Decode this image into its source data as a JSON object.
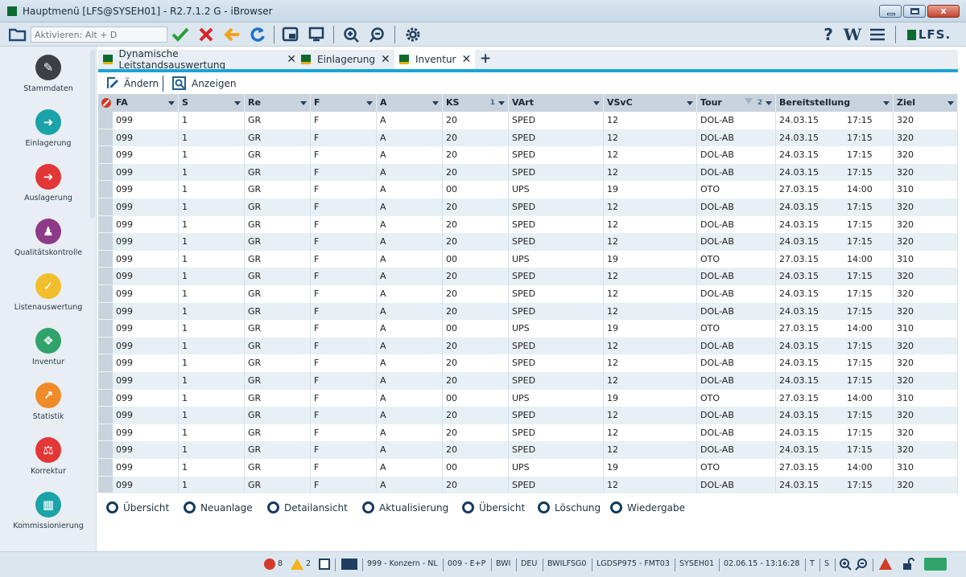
{
  "window": {
    "title": "Hauptmenü [LFS@SYSEH01] - R2.7.1.2 G - iBrowser",
    "controls": {
      "close": "x"
    }
  },
  "toolbar": {
    "activate_placeholder": "Aktivieren: Alt + D",
    "right": {
      "help": "?",
      "wiki": "W",
      "brand": "LFS."
    },
    "icons": [
      "open-folder-icon",
      "check-icon",
      "cancel-x-icon",
      "back-arrow-icon",
      "refresh-icon",
      "window-icon",
      "print-icon",
      "zoom-in-icon",
      "zoom-out-icon",
      "settings-gear-icon",
      "help-icon",
      "wiki-icon",
      "menu-icon"
    ]
  },
  "sidebar": {
    "items": [
      {
        "label": "Stammdaten",
        "icon": "person-tools-icon",
        "color": "#3c3f44"
      },
      {
        "label": "Einlagerung",
        "icon": "arrow-in-icon",
        "color": "#1aa3a8"
      },
      {
        "label": "Auslagerung",
        "icon": "arrow-out-icon",
        "color": "#e33636"
      },
      {
        "label": "Qualitätskontrolle",
        "icon": "stamp-icon",
        "color": "#8e3a8a"
      },
      {
        "label": "Listenauswertung",
        "icon": "folder-check-icon",
        "color": "#f3be2e"
      },
      {
        "label": "Inventur",
        "icon": "cube-icon",
        "color": "#2fa36b"
      },
      {
        "label": "Statistik",
        "icon": "chart-icon",
        "color": "#f08b2a"
      },
      {
        "label": "Korrektur",
        "icon": "scale-icon",
        "color": "#e33636"
      },
      {
        "label": "Kommissionierung",
        "icon": "grid-icon",
        "color": "#1aa3a8"
      }
    ]
  },
  "tabs": [
    {
      "label": "Dynamische Leitstandsauswertung",
      "active": false
    },
    {
      "label": "Einlagerung",
      "active": false
    },
    {
      "label": "Inventur",
      "active": true
    }
  ],
  "actions": [
    {
      "label": "Ändern",
      "icon": "edit-icon"
    },
    {
      "label": "Anzeigen",
      "icon": "view-search-icon"
    }
  ],
  "grid": {
    "columns": [
      {
        "key": "fa",
        "label": "FA"
      },
      {
        "key": "s",
        "label": "S"
      },
      {
        "key": "re",
        "label": "Re"
      },
      {
        "key": "f",
        "label": "F"
      },
      {
        "key": "a",
        "label": "A"
      },
      {
        "key": "ks",
        "label": "KS",
        "sort": "1"
      },
      {
        "key": "vart",
        "label": "VArt"
      },
      {
        "key": "vsvc",
        "label": "VSvC"
      },
      {
        "key": "tour",
        "label": "Tour",
        "sort": "2"
      },
      {
        "key": "bereit",
        "label": "Bereitstellung"
      },
      {
        "key": "ziel",
        "label": "Ziel"
      }
    ],
    "rows": [
      [
        "099",
        "1",
        "GR",
        "F",
        "A",
        "20",
        "SPED",
        "12",
        "DOL-AB",
        "24.03.15",
        "17:15",
        "320"
      ],
      [
        "099",
        "1",
        "GR",
        "F",
        "A",
        "20",
        "SPED",
        "12",
        "DOL-AB",
        "24.03.15",
        "17:15",
        "320"
      ],
      [
        "099",
        "1",
        "GR",
        "F",
        "A",
        "20",
        "SPED",
        "12",
        "DOL-AB",
        "24.03.15",
        "17:15",
        "320"
      ],
      [
        "099",
        "1",
        "GR",
        "F",
        "A",
        "20",
        "SPED",
        "12",
        "DOL-AB",
        "24.03.15",
        "17:15",
        "320"
      ],
      [
        "099",
        "1",
        "GR",
        "F",
        "A",
        "00",
        "UPS",
        "19",
        "OTO",
        "27.03.15",
        "14:00",
        "310"
      ],
      [
        "099",
        "1",
        "GR",
        "F",
        "A",
        "20",
        "SPED",
        "12",
        "DOL-AB",
        "24.03.15",
        "17:15",
        "320"
      ],
      [
        "099",
        "1",
        "GR",
        "F",
        "A",
        "20",
        "SPED",
        "12",
        "DOL-AB",
        "24.03.15",
        "17:15",
        "320"
      ],
      [
        "099",
        "1",
        "GR",
        "F",
        "A",
        "20",
        "SPED",
        "12",
        "DOL-AB",
        "24.03.15",
        "17:15",
        "320"
      ],
      [
        "099",
        "1",
        "GR",
        "F",
        "A",
        "00",
        "UPS",
        "19",
        "OTO",
        "27.03.15",
        "14:00",
        "310"
      ],
      [
        "099",
        "1",
        "GR",
        "F",
        "A",
        "20",
        "SPED",
        "12",
        "DOL-AB",
        "24.03.15",
        "17:15",
        "320"
      ],
      [
        "099",
        "1",
        "GR",
        "F",
        "A",
        "20",
        "SPED",
        "12",
        "DOL-AB",
        "24.03.15",
        "17:15",
        "320"
      ],
      [
        "099",
        "1",
        "GR",
        "F",
        "A",
        "20",
        "SPED",
        "12",
        "DOL-AB",
        "24.03.15",
        "17:15",
        "320"
      ],
      [
        "099",
        "1",
        "GR",
        "F",
        "A",
        "00",
        "UPS",
        "19",
        "OTO",
        "27.03.15",
        "14:00",
        "310"
      ],
      [
        "099",
        "1",
        "GR",
        "F",
        "A",
        "20",
        "SPED",
        "12",
        "DOL-AB",
        "24.03.15",
        "17:15",
        "320"
      ],
      [
        "099",
        "1",
        "GR",
        "F",
        "A",
        "20",
        "SPED",
        "12",
        "DOL-AB",
        "24.03.15",
        "17:15",
        "320"
      ],
      [
        "099",
        "1",
        "GR",
        "F",
        "A",
        "20",
        "SPED",
        "12",
        "DOL-AB",
        "24.03.15",
        "17:15",
        "320"
      ],
      [
        "099",
        "1",
        "GR",
        "F",
        "A",
        "00",
        "UPS",
        "19",
        "OTO",
        "27.03.15",
        "14:00",
        "310"
      ],
      [
        "099",
        "1",
        "GR",
        "F",
        "A",
        "20",
        "SPED",
        "12",
        "DOL-AB",
        "24.03.15",
        "17:15",
        "320"
      ],
      [
        "099",
        "1",
        "GR",
        "F",
        "A",
        "20",
        "SPED",
        "12",
        "DOL-AB",
        "24.03.15",
        "17:15",
        "320"
      ],
      [
        "099",
        "1",
        "GR",
        "F",
        "A",
        "20",
        "SPED",
        "12",
        "DOL-AB",
        "24.03.15",
        "17:15",
        "320"
      ],
      [
        "099",
        "1",
        "GR",
        "F",
        "A",
        "00",
        "UPS",
        "19",
        "OTO",
        "27.03.15",
        "14:00",
        "310"
      ],
      [
        "099",
        "1",
        "GR",
        "F",
        "A",
        "20",
        "SPED",
        "12",
        "DOL-AB",
        "24.03.15",
        "17:15",
        "320"
      ]
    ]
  },
  "options": [
    "Übersicht",
    "Neuanlage",
    "Detailansicht",
    "Aktualisierung",
    "Übersicht",
    "Löschung",
    "Wiedergabe"
  ],
  "status": {
    "errors": "8",
    "warnings": "2",
    "company": "999 - Konzern - NL",
    "client": "009 - E+P",
    "site": "BWI",
    "lang": "DEU",
    "user": "BWILFSG0",
    "device": "LGDSP975 - FMT03",
    "system": "SYSEH01",
    "datetime": "02.06.15 - 13:16:28",
    "mode_t": "T",
    "mode_s": "S"
  },
  "colors": {
    "accent": "#1aa3d8",
    "header": "#c8d3dd",
    "row_alt": "#e7f0f5",
    "brand_green": "#0e6b2f"
  }
}
